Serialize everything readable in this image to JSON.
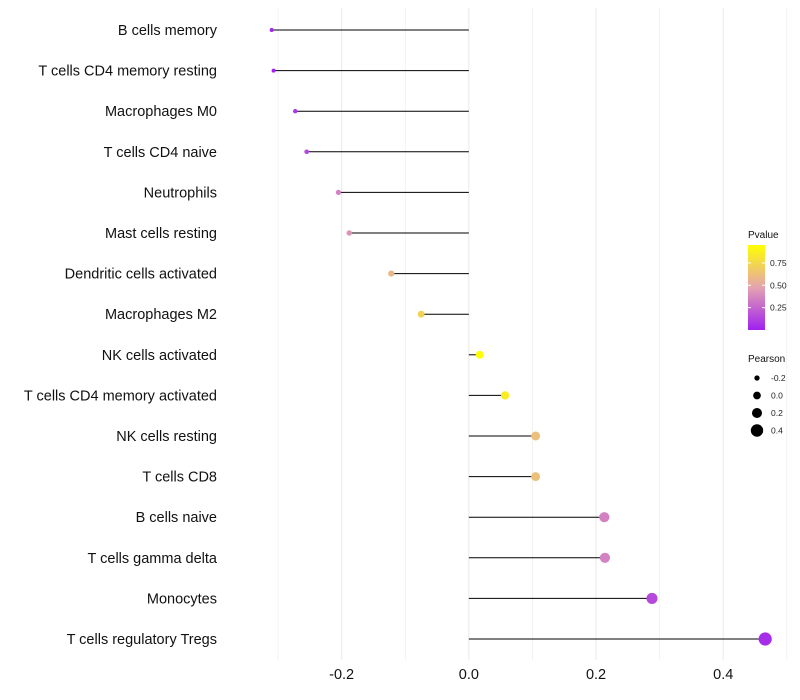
{
  "chart_data": {
    "type": "lollipop",
    "title": "",
    "xlabel": "",
    "ylabel": "",
    "xlim": [
      -0.385,
      0.505
    ],
    "x_ticks": [
      -0.2,
      0.0,
      0.2,
      0.4
    ],
    "x_tick_labels": [
      "-0.2",
      "0.0",
      "0.2",
      "0.4"
    ],
    "grid": true,
    "categories": [
      "B cells memory",
      "T cells CD4 memory resting",
      "Macrophages M0",
      "T cells CD4 naive",
      "Neutrophils",
      "Mast cells resting",
      "Dendritic cells activated",
      "Macrophages M2",
      "NK cells activated",
      "T cells CD4 memory activated",
      "NK cells resting",
      "T cells CD8",
      "B cells naive",
      "T cells gamma delta",
      "Monocytes",
      "T cells regulatory  Tregs"
    ],
    "values": [
      -0.31,
      -0.307,
      -0.273,
      -0.255,
      -0.205,
      -0.188,
      -0.122,
      -0.075,
      0.017,
      0.057,
      0.105,
      0.105,
      0.213,
      0.214,
      0.288,
      0.466
    ],
    "pvalues": [
      0.01,
      0.01,
      0.08,
      0.15,
      0.35,
      0.42,
      0.58,
      0.72,
      0.98,
      0.85,
      0.62,
      0.62,
      0.35,
      0.35,
      0.15,
      0.05
    ],
    "legend_position": "right",
    "legend": {
      "color": {
        "title": "Pvalue",
        "range": [
          0.0,
          0.95
        ],
        "ticks": [
          0.25,
          0.5,
          0.75
        ],
        "tick_labels": [
          "0.25",
          "0.50",
          "0.75"
        ],
        "low_color": "#a020f0",
        "mid_color": "#e4a3b0",
        "high_color": "#ffff00"
      },
      "size": {
        "title": "Pearson",
        "values": [
          -0.2,
          0.0,
          0.2,
          0.4
        ],
        "labels": [
          "-0.2",
          "0.0",
          "0.2",
          "0.4"
        ]
      }
    },
    "colors": {
      "stem": "#000000",
      "grid": "#ebebeb",
      "size_key": "#000000"
    }
  }
}
